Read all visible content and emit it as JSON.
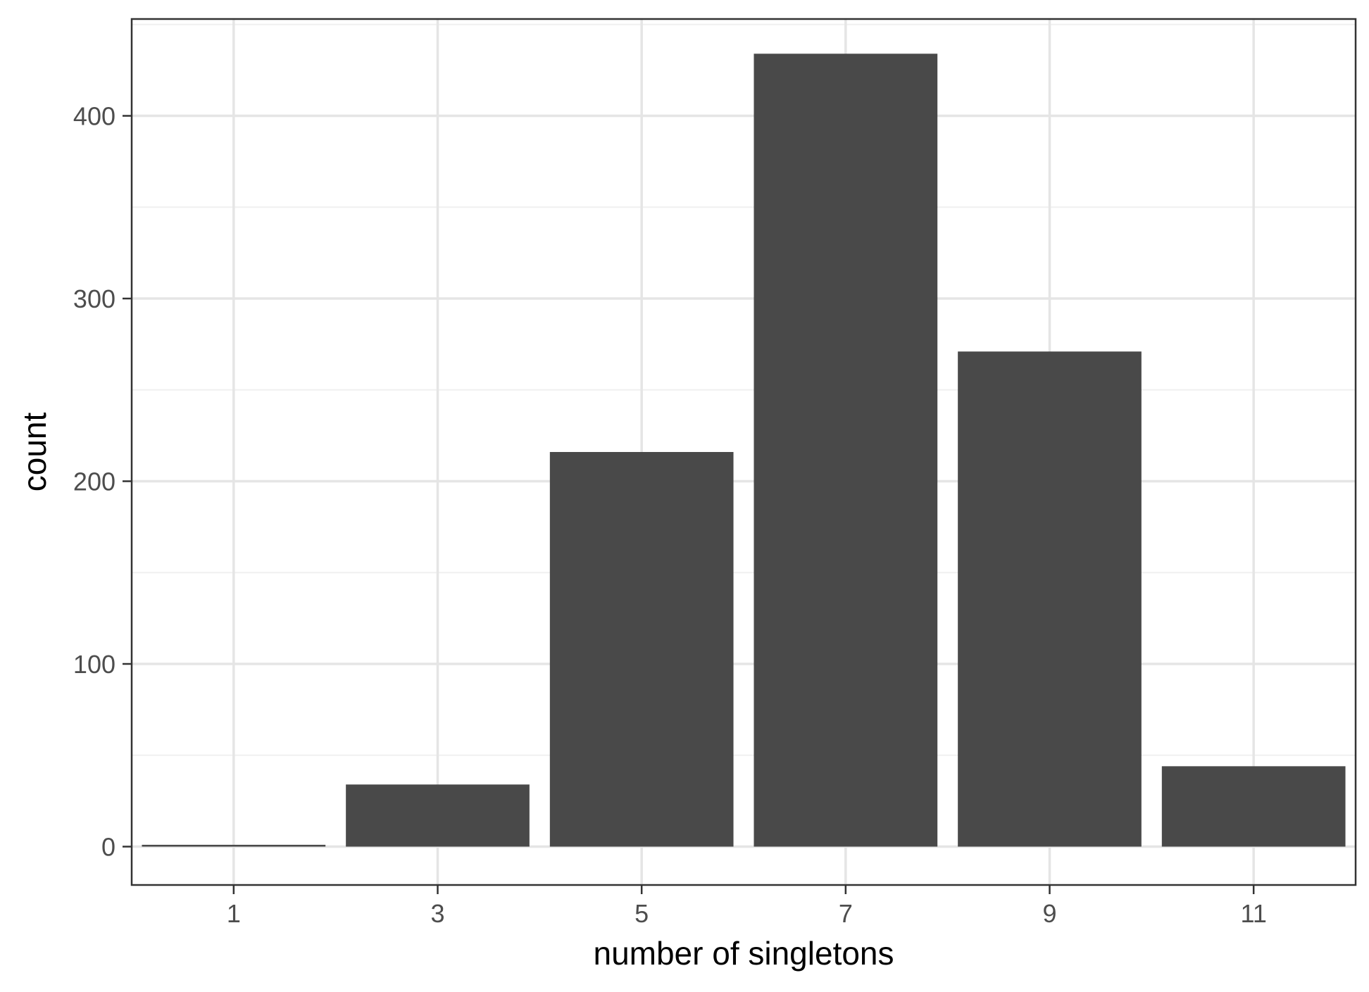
{
  "chart_data": {
    "type": "bar",
    "title": "",
    "xlabel": "number of singletons",
    "ylabel": "count",
    "categories": [
      1,
      3,
      5,
      7,
      9,
      11
    ],
    "values": [
      1,
      34,
      216,
      434,
      271,
      44
    ],
    "xlim": [
      0,
      12
    ],
    "ylim": [
      -21,
      453
    ],
    "xticks": [
      "1",
      "3",
      "5",
      "7",
      "9",
      "11"
    ],
    "yticks": [
      "0",
      "100",
      "200",
      "300",
      "400"
    ],
    "ytick_values": [
      0,
      100,
      200,
      300,
      400
    ],
    "grid": true,
    "legend": "none",
    "colors": {
      "bar": "#494949",
      "grid_major": "#e5e5e5",
      "grid_minor": "#f0f0f0",
      "panel_border": "#333333",
      "background": "#ffffff"
    }
  }
}
